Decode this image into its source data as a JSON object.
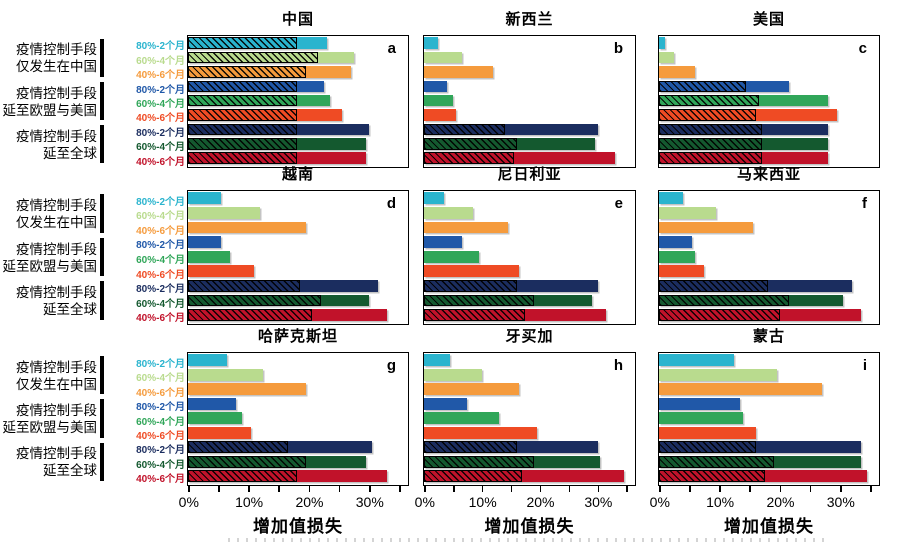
{
  "chart_data": {
    "type": "bar",
    "orientation": "horizontal",
    "value_unit": "percent",
    "xlabel": "增加值损失",
    "xlim": [
      0,
      36.2
    ],
    "xtick_values": [
      0,
      10,
      20,
      30
    ],
    "xtick_labels": [
      "0%",
      "10%",
      "20%",
      "30%"
    ],
    "minor_tick_values": [
      0,
      5,
      10,
      15,
      20,
      25,
      30,
      35
    ],
    "grid": "off",
    "legend_position": "left-row-labels",
    "groups": [
      {
        "label_lines": [
          "疫情控制手段",
          "仅发生在中国"
        ]
      },
      {
        "label_lines": [
          "疫情控制手段",
          "延至欧盟与美国"
        ]
      },
      {
        "label_lines": [
          "疫情控制手段",
          "延至全球"
        ]
      }
    ],
    "bar_series": [
      {
        "group": 0,
        "label": "80%-2个月",
        "color": "#2AB4CE"
      },
      {
        "group": 0,
        "label": "60%-4个月",
        "color": "#B9DB8E"
      },
      {
        "group": 0,
        "label": "40%-6个月",
        "color": "#F59B3D"
      },
      {
        "group": 1,
        "label": "80%-2个月",
        "color": "#2058A8"
      },
      {
        "group": 1,
        "label": "60%-4个月",
        "color": "#30A659"
      },
      {
        "group": 1,
        "label": "40%-6个月",
        "color": "#EF4B24"
      },
      {
        "group": 2,
        "label": "80%-2个月",
        "color": "#1B2D5F"
      },
      {
        "group": 2,
        "label": "60%-4个月",
        "color": "#14592F"
      },
      {
        "group": 2,
        "label": "40%-6个月",
        "color": "#C1122A"
      }
    ],
    "panels": [
      {
        "letter": "a",
        "title": "中国",
        "totals": [
          23,
          27.5,
          27,
          22.5,
          23.5,
          25.5,
          30,
          29.5,
          29.5
        ],
        "hatched": [
          18,
          21.5,
          19.5,
          18,
          18,
          18,
          18,
          18,
          18
        ]
      },
      {
        "letter": "b",
        "title": "新西兰",
        "totals": [
          2.5,
          6.5,
          12,
          4,
          5,
          5.5,
          30,
          29.5,
          33
        ],
        "hatched": [
          0,
          0,
          0,
          0,
          0,
          0,
          14,
          16,
          15.5
        ]
      },
      {
        "letter": "c",
        "title": "美国",
        "totals": [
          1,
          2.5,
          6,
          21.5,
          28,
          29.5,
          28,
          28,
          28
        ],
        "hatched": [
          0,
          0,
          0,
          14.5,
          16.5,
          16,
          17,
          17,
          17
        ]
      },
      {
        "letter": "d",
        "title": "越南",
        "totals": [
          5.5,
          12,
          19.5,
          5.5,
          7,
          11,
          31.5,
          30,
          33
        ],
        "hatched": [
          0,
          0,
          0,
          0,
          0,
          0,
          18.5,
          22,
          20.5
        ]
      },
      {
        "letter": "e",
        "title": "尼日利亚",
        "totals": [
          3.5,
          8.5,
          14.5,
          6.5,
          9.5,
          16.5,
          30,
          29,
          31.5
        ],
        "hatched": [
          0,
          0,
          0,
          0,
          0,
          0,
          16,
          19,
          17.5
        ]
      },
      {
        "letter": "f",
        "title": "马来西亚",
        "totals": [
          4,
          9.5,
          15.5,
          5.5,
          6,
          7.5,
          32,
          30.5,
          33.5
        ],
        "hatched": [
          0,
          0,
          0,
          0,
          0,
          0,
          18,
          21.5,
          20
        ]
      },
      {
        "letter": "g",
        "title": "哈萨克斯坦",
        "totals": [
          6.5,
          12.5,
          19.5,
          8,
          9,
          10.5,
          30.5,
          29.5,
          33
        ],
        "hatched": [
          0,
          0,
          0,
          0,
          0,
          0,
          16.5,
          19.5,
          18
        ]
      },
      {
        "letter": "h",
        "title": "牙买加",
        "totals": [
          4.5,
          10,
          16.5,
          7.5,
          13,
          19.5,
          30,
          30.5,
          34.5
        ],
        "hatched": [
          0,
          0,
          0,
          0,
          0,
          0,
          16,
          19,
          17
        ]
      },
      {
        "letter": "i",
        "title": "蒙古",
        "totals": [
          12.5,
          19.5,
          27,
          13.5,
          14,
          16,
          33.5,
          33.5,
          34.5
        ],
        "hatched": [
          0,
          0,
          0,
          0,
          0,
          0,
          16,
          19,
          17.5
        ]
      }
    ]
  },
  "layout_note_colors": {
    "axis_line": "#000000",
    "background": "#ffffff"
  }
}
